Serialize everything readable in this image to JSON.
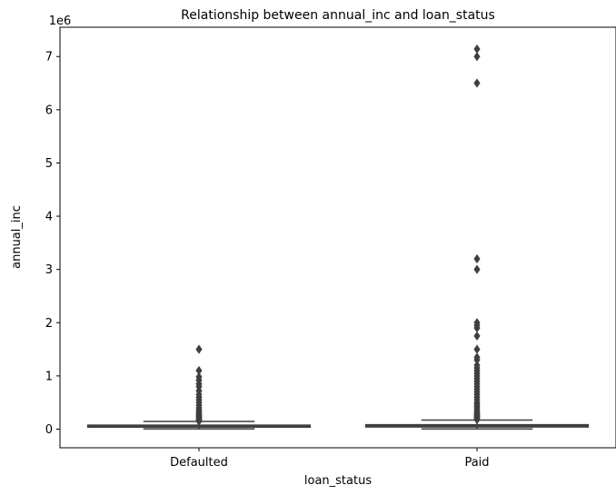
{
  "chart_data": {
    "type": "box",
    "title": "Relationship between annual_inc and loan_status",
    "xlabel": "loan_status",
    "ylabel": "annual_inc",
    "offset_label": "1e6",
    "categories": [
      "Defaulted",
      "Paid"
    ],
    "ylim": [
      -0.35,
      7.55
    ],
    "yticks": [
      0,
      1,
      2,
      3,
      4,
      5,
      6,
      7
    ],
    "yticklabels": [
      "0",
      "1",
      "2",
      "3",
      "4",
      "5",
      "6",
      "7"
    ],
    "grid": false,
    "boxes": [
      {
        "category": "Defaulted",
        "whisker_low": 0.004,
        "q1": 0.037,
        "median": 0.053,
        "q3": 0.075,
        "whisker_high": 0.145,
        "outliers": [
          0.15,
          0.17,
          0.19,
          0.21,
          0.23,
          0.25,
          0.27,
          0.3,
          0.33,
          0.36,
          0.4,
          0.45,
          0.5,
          0.55,
          0.6,
          0.65,
          0.72,
          0.8,
          0.85,
          0.92,
          0.98,
          1.1,
          1.5
        ]
      },
      {
        "category": "Paid",
        "whisker_low": 0.004,
        "q1": 0.041,
        "median": 0.06,
        "q3": 0.083,
        "whisker_high": 0.17,
        "outliers": [
          0.18,
          0.2,
          0.22,
          0.24,
          0.26,
          0.28,
          0.3,
          0.33,
          0.36,
          0.4,
          0.43,
          0.47,
          0.5,
          0.55,
          0.6,
          0.65,
          0.7,
          0.75,
          0.8,
          0.85,
          0.9,
          0.95,
          1.0,
          1.05,
          1.1,
          1.15,
          1.2,
          1.3,
          1.35,
          1.5,
          1.75,
          1.9,
          1.95,
          2.0,
          3.0,
          3.2,
          6.5,
          7.0,
          7.14
        ]
      }
    ],
    "colors": {
      "box_fill": "#4a4a4a",
      "line": "#3f3f3f",
      "axes": "#000000",
      "text": "#000000"
    }
  }
}
